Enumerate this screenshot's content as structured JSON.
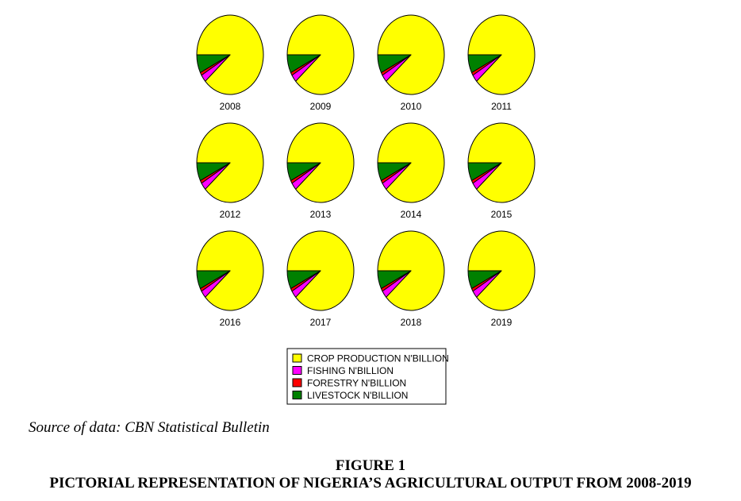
{
  "chart_data": {
    "type": "pie",
    "title": "",
    "series_names": [
      "CROP PRODUCTION N'BILLION",
      "FISHING N'BILLION",
      "FORESTRY N'BILLION",
      "LIVESTOCK N'BILLION"
    ],
    "colors": {
      "crop": "#ffff00",
      "fishing": "#ff00ff",
      "forestry": "#ff0000",
      "livestock": "#008000"
    },
    "pies": [
      {
        "label": "2008",
        "values": [
          88.4,
          3.0,
          1.2,
          7.4
        ]
      },
      {
        "label": "2009",
        "values": [
          88.4,
          3.0,
          1.2,
          7.4
        ]
      },
      {
        "label": "2010",
        "values": [
          88.4,
          3.0,
          1.2,
          7.4
        ]
      },
      {
        "label": "2011",
        "values": [
          88.4,
          3.0,
          1.2,
          7.4
        ]
      },
      {
        "label": "2012",
        "values": [
          88.4,
          3.0,
          1.2,
          7.4
        ]
      },
      {
        "label": "2013",
        "values": [
          88.4,
          3.0,
          1.2,
          7.4
        ]
      },
      {
        "label": "2014",
        "values": [
          88.4,
          3.0,
          1.2,
          7.4
        ]
      },
      {
        "label": "2015",
        "values": [
          88.4,
          3.0,
          1.2,
          7.4
        ]
      },
      {
        "label": "2016",
        "values": [
          88.4,
          3.0,
          1.2,
          7.4
        ]
      },
      {
        "label": "2017",
        "values": [
          88.4,
          3.0,
          1.2,
          7.4
        ]
      },
      {
        "label": "2018",
        "values": [
          88.4,
          3.0,
          1.2,
          7.4
        ]
      },
      {
        "label": "2019",
        "values": [
          88.4,
          3.0,
          1.2,
          7.4
        ]
      }
    ],
    "legend": [
      {
        "label": "CROP PRODUCTION N'BILLION",
        "color": "#ffff00"
      },
      {
        "label": "FISHING N'BILLION",
        "color": "#ff00ff"
      },
      {
        "label": "FORESTRY N'BILLION",
        "color": "#ff0000"
      },
      {
        "label": "LIVESTOCK N'BILLION",
        "color": "#008000"
      }
    ],
    "legend_position": "bottom-center"
  },
  "source_text": "Source of data: CBN Statistical Bulletin",
  "figure_number": "FIGURE 1",
  "figure_title": "PICTORIAL REPRESENTATION OF NIGERIA’S AGRICULTURAL OUTPUT FROM 2008-2019"
}
